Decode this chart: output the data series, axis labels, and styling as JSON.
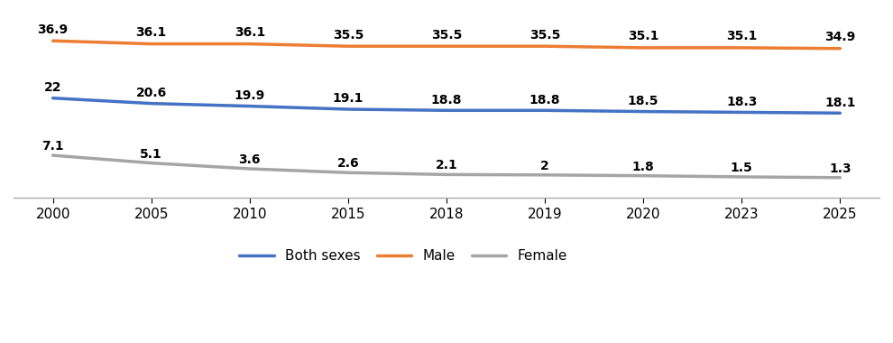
{
  "years": [
    "2000",
    "2005",
    "2010",
    "2015",
    "2018",
    "2019",
    "2020",
    "2023",
    "2025"
  ],
  "both_sexes": [
    22.0,
    20.6,
    19.9,
    19.1,
    18.8,
    18.8,
    18.5,
    18.3,
    18.1
  ],
  "male": [
    36.9,
    36.1,
    36.1,
    35.5,
    35.5,
    35.5,
    35.1,
    35.1,
    34.9
  ],
  "female": [
    7.1,
    5.1,
    3.6,
    2.6,
    2.1,
    2.0,
    1.8,
    1.5,
    1.3
  ],
  "both_sexes_labels": [
    "22",
    "20.6",
    "19.9",
    "19.1",
    "18.8",
    "18.8",
    "18.5",
    "18.3",
    "18.1"
  ],
  "male_labels": [
    "36.9",
    "36.1",
    "36.1",
    "35.5",
    "35.5",
    "35.5",
    "35.1",
    "35.1",
    "34.9"
  ],
  "female_labels": [
    "7.1",
    "5.1",
    "3.6",
    "2.6",
    "2.1",
    "2",
    "1.8",
    "1.5",
    "1.3"
  ],
  "both_sexes_color": "#4472C4",
  "male_color": "#ED7D31",
  "female_color": "#A5A5A5",
  "line_width": 2.5,
  "label_fontsize": 10,
  "tick_fontsize": 11,
  "legend_fontsize": 11,
  "ylim": [
    -4,
    44
  ]
}
